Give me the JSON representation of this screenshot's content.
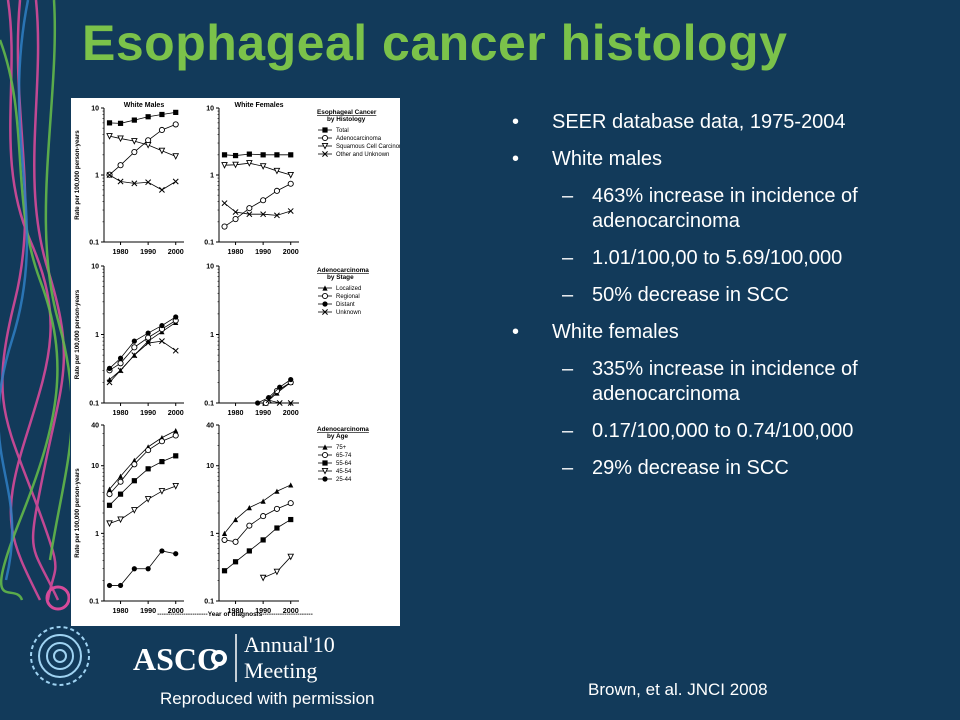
{
  "slide": {
    "title": "Esophageal cancer histology",
    "bullets": [
      {
        "level": 1,
        "text": "SEER database data, 1975-2004"
      },
      {
        "level": 1,
        "text": "White males"
      },
      {
        "level": 2,
        "text": "463% increase in incidence of adenocarcinoma"
      },
      {
        "level": 2,
        "text": "1.01/100,00 to 5.69/100,000"
      },
      {
        "level": 2,
        "text": "50% decrease in SCC"
      },
      {
        "level": 1,
        "text": "White females"
      },
      {
        "level": 2,
        "text": "335% increase in incidence of adenocarcinoma"
      },
      {
        "level": 2,
        "text": "0.17/100,000 to 0.74/100,000"
      },
      {
        "level": 2,
        "text": "29% decrease in SCC"
      }
    ],
    "bullet_marks": {
      "level1": "•",
      "level2": "–"
    },
    "permission": "Reproduced with permission",
    "citation": "Brown, et al. JNCI 2008",
    "logo": {
      "name": "ASCO",
      "line1": "Annual",
      "year": "'10",
      "line2": "Meeting"
    },
    "colors": {
      "background": "#123a5a",
      "title": "#7bc24a",
      "text": "#ffffff",
      "accent": "#d64a9a"
    }
  },
  "chart_data": {
    "type": "line",
    "scale": "log",
    "ylabel": "Rate per 100,000 person-years",
    "xlabel": "-----------------------Year of diagnosis-----------------------",
    "x": [
      1976,
      1979,
      1982,
      1985,
      1988,
      1991,
      1994,
      1997,
      2000
    ],
    "xticks": [
      1980,
      1990,
      2000
    ],
    "rows": [
      {
        "ylim": [
          0.1,
          10
        ],
        "yticks": [
          {
            "v": 10,
            "label": "10"
          },
          {
            "v": 1,
            "label": "1"
          },
          {
            "v": 0.1,
            "label": "0.1"
          }
        ],
        "legend": {
          "title": [
            "Esophageal Cancer",
            "by Histology"
          ]
        },
        "panels": [
          {
            "title": "White Males",
            "series": [
              {
                "name": "Total",
                "marker": "square-filled",
                "x": [
                  1976,
                  1980,
                  1985,
                  1990,
                  1995,
                  2000
                ],
                "values": [
                  6.0,
                  5.9,
                  6.6,
                  7.4,
                  8.0,
                  8.6
                ]
              },
              {
                "name": "Adenocarcinoma",
                "marker": "circle-open",
                "x": [
                  1976,
                  1980,
                  1985,
                  1990,
                  1995,
                  2000
                ],
                "values": [
                  1.01,
                  1.4,
                  2.2,
                  3.3,
                  4.7,
                  5.69
                ]
              },
              {
                "name": "Squamous Cell Carcinoma",
                "marker": "triangle-down-open",
                "x": [
                  1976,
                  1980,
                  1985,
                  1990,
                  1995,
                  2000
                ],
                "values": [
                  3.8,
                  3.5,
                  3.2,
                  2.8,
                  2.3,
                  1.9
                ]
              },
              {
                "name": "Other and Unknown",
                "marker": "x",
                "x": [
                  1976,
                  1980,
                  1985,
                  1990,
                  1995,
                  2000
                ],
                "values": [
                  1.0,
                  0.8,
                  0.75,
                  0.78,
                  0.6,
                  0.8
                ]
              }
            ]
          },
          {
            "title": "White Females",
            "series": [
              {
                "name": "Total",
                "marker": "square-filled",
                "x": [
                  1976,
                  1980,
                  1985,
                  1990,
                  1995,
                  2000
                ],
                "values": [
                  2.0,
                  1.95,
                  2.05,
                  2.0,
                  2.0,
                  2.0
                ]
              },
              {
                "name": "Adenocarcinoma",
                "marker": "circle-open",
                "x": [
                  1976,
                  1980,
                  1985,
                  1990,
                  1995,
                  2000
                ],
                "values": [
                  0.17,
                  0.22,
                  0.32,
                  0.42,
                  0.58,
                  0.74
                ]
              },
              {
                "name": "Squamous Cell Carcinoma",
                "marker": "triangle-down-open",
                "x": [
                  1976,
                  1980,
                  1985,
                  1990,
                  1995,
                  2000
                ],
                "values": [
                  1.4,
                  1.42,
                  1.5,
                  1.35,
                  1.15,
                  1.0
                ]
              },
              {
                "name": "Other and Unknown",
                "marker": "x",
                "x": [
                  1976,
                  1980,
                  1985,
                  1990,
                  1995,
                  2000
                ],
                "values": [
                  0.38,
                  0.28,
                  0.26,
                  0.26,
                  0.25,
                  0.29
                ]
              }
            ]
          }
        ]
      },
      {
        "ylim": [
          0.1,
          10
        ],
        "yticks": [
          {
            "v": 10,
            "label": "10"
          },
          {
            "v": 1,
            "label": "1"
          },
          {
            "v": 0.1,
            "label": "0.1"
          }
        ],
        "legend": {
          "title": [
            "Adenocarcinoma",
            "by Stage"
          ]
        },
        "panels": [
          {
            "title": "",
            "series": [
              {
                "name": "Localized",
                "marker": "triangle-up-filled",
                "x": [
                  1976,
                  1980,
                  1985,
                  1990,
                  1995,
                  2000
                ],
                "values": [
                  0.22,
                  0.3,
                  0.5,
                  0.8,
                  1.1,
                  1.5
                ]
              },
              {
                "name": "Regional",
                "marker": "circle-open",
                "x": [
                  1976,
                  1980,
                  1985,
                  1990,
                  1995,
                  2000
                ],
                "values": [
                  0.3,
                  0.38,
                  0.65,
                  0.9,
                  1.2,
                  1.6
                ]
              },
              {
                "name": "Distant",
                "marker": "circle-filled",
                "x": [
                  1976,
                  1980,
                  1985,
                  1990,
                  1995,
                  2000
                ],
                "values": [
                  0.32,
                  0.45,
                  0.8,
                  1.05,
                  1.35,
                  1.8
                ]
              },
              {
                "name": "Unknown",
                "marker": "x",
                "x": [
                  1976,
                  1980,
                  1985,
                  1990,
                  1995,
                  2000
                ],
                "values": [
                  0.2,
                  0.3,
                  0.5,
                  0.75,
                  0.8,
                  0.58
                ]
              }
            ]
          },
          {
            "title": "",
            "series": [
              {
                "name": "Localized",
                "marker": "triangle-up-filled",
                "x": [
                  1991,
                  1995,
                  2000
                ],
                "values": [
                  0.1,
                  0.14,
                  0.2
                ]
              },
              {
                "name": "Regional",
                "marker": "circle-open",
                "x": [
                  1991,
                  1995,
                  2000
                ],
                "values": [
                  0.1,
                  0.15,
                  0.2
                ]
              },
              {
                "name": "Distant",
                "marker": "circle-filled",
                "x": [
                  1988,
                  1992,
                  1996,
                  2000
                ],
                "values": [
                  0.1,
                  0.12,
                  0.17,
                  0.22
                ]
              },
              {
                "name": "Unknown",
                "marker": "x",
                "x": [
                  1992,
                  1996,
                  2000
                ],
                "values": [
                  0.11,
                  0.1,
                  0.1
                ]
              }
            ]
          }
        ]
      },
      {
        "ylim": [
          0.1,
          40
        ],
        "yticks": [
          {
            "v": 40,
            "label": "40"
          },
          {
            "v": 10,
            "label": "10"
          },
          {
            "v": 1,
            "label": "1"
          },
          {
            "v": 0.1,
            "label": "0.1"
          }
        ],
        "legend": {
          "title": [
            "Adenocarcinoma",
            "by Age"
          ]
        },
        "panels": [
          {
            "title": "",
            "series": [
              {
                "name": "75+",
                "marker": "triangle-up-filled",
                "x": [
                  1976,
                  1980,
                  1985,
                  1990,
                  1995,
                  2000
                ],
                "values": [
                  4.5,
                  7.0,
                  12.0,
                  19.0,
                  26.0,
                  33.0
                ]
              },
              {
                "name": "65-74",
                "marker": "circle-open",
                "x": [
                  1976,
                  1980,
                  1985,
                  1990,
                  1995,
                  2000
                ],
                "values": [
                  3.8,
                  5.8,
                  10.5,
                  17.0,
                  23.0,
                  28.0
                ]
              },
              {
                "name": "55-64",
                "marker": "square-filled",
                "x": [
                  1976,
                  1980,
                  1985,
                  1990,
                  1995,
                  2000
                ],
                "values": [
                  2.6,
                  3.8,
                  6.0,
                  9.0,
                  11.5,
                  14.0
                ]
              },
              {
                "name": "45-54",
                "marker": "triangle-down-open",
                "x": [
                  1976,
                  1980,
                  1985,
                  1990,
                  1995,
                  2000
                ],
                "values": [
                  1.4,
                  1.6,
                  2.2,
                  3.2,
                  4.2,
                  5.0
                ]
              },
              {
                "name": "25-44",
                "marker": "circle-filled",
                "x": [
                  1976,
                  1980,
                  1985,
                  1990,
                  1995,
                  2000
                ],
                "values": [
                  0.17,
                  0.17,
                  0.3,
                  0.3,
                  0.55,
                  0.5
                ]
              }
            ]
          },
          {
            "title": "",
            "series": [
              {
                "name": "75+",
                "marker": "triangle-up-filled",
                "x": [
                  1976,
                  1980,
                  1985,
                  1990,
                  1995,
                  2000
                ],
                "values": [
                  1.0,
                  1.6,
                  2.4,
                  3.0,
                  4.2,
                  5.2
                ]
              },
              {
                "name": "65-74",
                "marker": "circle-open",
                "x": [
                  1976,
                  1980,
                  1985,
                  1990,
                  1995,
                  2000
                ],
                "values": [
                  0.8,
                  0.75,
                  1.3,
                  1.8,
                  2.3,
                  2.8
                ]
              },
              {
                "name": "55-64",
                "marker": "square-filled",
                "x": [
                  1976,
                  1980,
                  1985,
                  1990,
                  1995,
                  2000
                ],
                "values": [
                  0.28,
                  0.38,
                  0.55,
                  0.8,
                  1.2,
                  1.6
                ]
              },
              {
                "name": "45-54",
                "marker": "triangle-down-open",
                "x": [
                  1990,
                  1995,
                  2000
                ],
                "values": [
                  0.22,
                  0.27,
                  0.45
                ]
              }
            ]
          }
        ]
      }
    ]
  }
}
